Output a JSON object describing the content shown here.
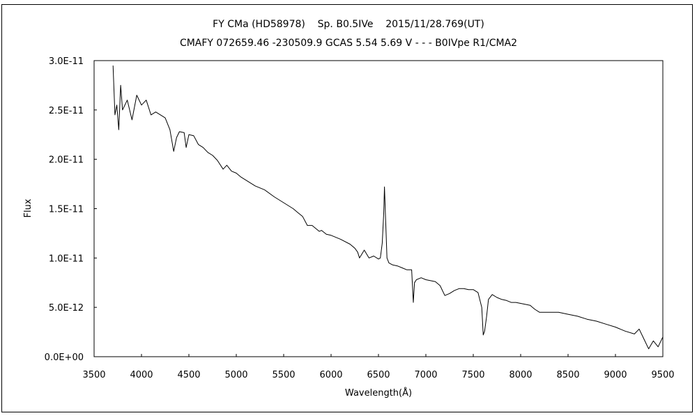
{
  "chart_data": {
    "type": "line",
    "title": "FY CMa (HD58978)    Sp. B0.5IVe    2015/11/28.769(UT)",
    "subtitle": "CMAFY 072659.46 -230509.9 GCAS 5.54 5.69 V - - - B0IVpe R1/CMA2",
    "xlabel": "Wavelength(Å)",
    "ylabel": "Flux",
    "xlim": [
      3500,
      9500
    ],
    "ylim": [
      0,
      3e-11
    ],
    "grid": false,
    "x_ticks": [
      3500,
      4000,
      4500,
      5000,
      5500,
      6000,
      6500,
      7000,
      7500,
      8000,
      8500,
      9000,
      9500
    ],
    "x_tick_labels": [
      "3500",
      "4000",
      "4500",
      "5000",
      "5500",
      "6000",
      "6500",
      "7000",
      "7500",
      "8000",
      "8500",
      "9000",
      "9500"
    ],
    "y_ticks": [
      0,
      5e-12,
      1e-11,
      1.5e-11,
      2e-11,
      2.5e-11,
      3e-11
    ],
    "y_tick_labels": [
      "0.0E+00",
      "5.0E-12",
      "1.0E-11",
      "1.5E-11",
      "2.0E-11",
      "2.5E-11",
      "3.0E-11"
    ],
    "series": [
      {
        "color": "#000000",
        "x": [
          3700,
          3720,
          3740,
          3760,
          3780,
          3800,
          3850,
          3900,
          3950,
          4000,
          4050,
          4100,
          4150,
          4200,
          4250,
          4300,
          4340,
          4370,
          4400,
          4450,
          4471,
          4500,
          4550,
          4600,
          4650,
          4700,
          4750,
          4800,
          4861,
          4900,
          4950,
          5000,
          5050,
          5100,
          5200,
          5300,
          5400,
          5500,
          5600,
          5650,
          5700,
          5750,
          5800,
          5876,
          5900,
          5950,
          6000,
          6100,
          6200,
          6250,
          6280,
          6300,
          6350,
          6400,
          6450,
          6500,
          6520,
          6540,
          6555,
          6563,
          6575,
          6590,
          6610,
          6650,
          6700,
          6750,
          6800,
          6850,
          6868,
          6880,
          6900,
          6950,
          7000,
          7100,
          7150,
          7200,
          7250,
          7300,
          7350,
          7400,
          7450,
          7500,
          7550,
          7590,
          7605,
          7620,
          7640,
          7660,
          7700,
          7750,
          7800,
          7850,
          7900,
          7950,
          8000,
          8050,
          8100,
          8150,
          8200,
          8300,
          8400,
          8500,
          8600,
          8700,
          8800,
          8900,
          9000,
          9100,
          9200,
          9250,
          9300,
          9350,
          9400,
          9450,
          9500
        ],
        "y": [
          2.95e-11,
          2.45e-11,
          2.55e-11,
          2.3e-11,
          2.75e-11,
          2.5e-11,
          2.6e-11,
          2.4e-11,
          2.65e-11,
          2.55e-11,
          2.6e-11,
          2.45e-11,
          2.48e-11,
          2.45e-11,
          2.42e-11,
          2.3e-11,
          2.08e-11,
          2.22e-11,
          2.28e-11,
          2.27e-11,
          2.12e-11,
          2.25e-11,
          2.24e-11,
          2.15e-11,
          2.12e-11,
          2.07e-11,
          2.04e-11,
          1.99e-11,
          1.9e-11,
          1.94e-11,
          1.88e-11,
          1.86e-11,
          1.82e-11,
          1.79e-11,
          1.73e-11,
          1.69e-11,
          1.62e-11,
          1.56e-11,
          1.5e-11,
          1.46e-11,
          1.42e-11,
          1.33e-11,
          1.33e-11,
          1.27e-11,
          1.28e-11,
          1.24e-11,
          1.23e-11,
          1.19e-11,
          1.14e-11,
          1.1e-11,
          1.06e-11,
          1e-11,
          1.08e-11,
          1e-11,
          1.02e-11,
          9.9e-12,
          1e-11,
          1.15e-11,
          1.45e-11,
          1.72e-11,
          1.4e-11,
          1e-11,
          9.5e-12,
          9.3e-12,
          9.2e-12,
          9e-12,
          8.8e-12,
          8.8e-12,
          5.5e-12,
          7.5e-12,
          7.8e-12,
          8e-12,
          7.8e-12,
          7.6e-12,
          7.2e-12,
          6.2e-12,
          6.4e-12,
          6.7e-12,
          6.9e-12,
          6.9e-12,
          6.8e-12,
          6.8e-12,
          6.5e-12,
          5e-12,
          2.2e-12,
          2.6e-12,
          4e-12,
          5.8e-12,
          6.3e-12,
          6e-12,
          5.8e-12,
          5.7e-12,
          5.5e-12,
          5.5e-12,
          5.4e-12,
          5.3e-12,
          5.2e-12,
          4.8e-12,
          4.5e-12,
          4.5e-12,
          4.5e-12,
          4.3e-12,
          4.1e-12,
          3.8e-12,
          3.6e-12,
          3.3e-12,
          3e-12,
          2.6e-12,
          2.3e-12,
          2.8e-12,
          1.8e-12,
          8e-13,
          1.6e-12,
          1e-12,
          2e-12
        ]
      }
    ]
  }
}
